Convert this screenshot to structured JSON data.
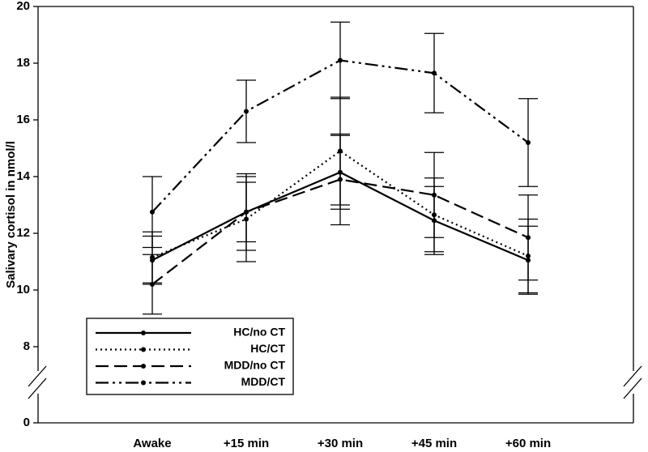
{
  "chart_data": {
    "type": "line",
    "y_label": "Salivary cortisol in nmol/l",
    "categories": [
      "Awake",
      "+15 min",
      "+30 min",
      "+45 min",
      "+60 min"
    ],
    "series": [
      {
        "name": "HC/no CT",
        "color": "#000000",
        "dash": "solid",
        "values": [
          11.05,
          12.75,
          14.15,
          12.45,
          11.05
        ],
        "errors": [
          0.85,
          1.05,
          1.3,
          1.2,
          1.2
        ]
      },
      {
        "name": "HC/CT",
        "color": "#000000",
        "dash": "dotted",
        "values": [
          11.15,
          12.5,
          14.9,
          12.65,
          11.2
        ],
        "errors": [
          0.9,
          1.5,
          1.9,
          1.3,
          1.3
        ]
      },
      {
        "name": "MDD/no CT",
        "color": "#000000",
        "dash": "dashed",
        "values": [
          10.2,
          12.75,
          13.9,
          13.35,
          11.85
        ],
        "errors": [
          1.05,
          1.35,
          1.6,
          1.5,
          1.5
        ]
      },
      {
        "name": "MDD/CT",
        "color": "#000000",
        "dash": "dashdotdot",
        "values": [
          12.75,
          16.3,
          18.1,
          17.65,
          15.2
        ],
        "errors": [
          1.25,
          1.1,
          1.35,
          1.4,
          1.55
        ]
      }
    ],
    "ylim": [
      0,
      20
    ],
    "yticks": [
      0,
      8,
      10,
      12,
      14,
      16,
      18,
      20
    ],
    "y_break": true,
    "legend": "lower left"
  }
}
